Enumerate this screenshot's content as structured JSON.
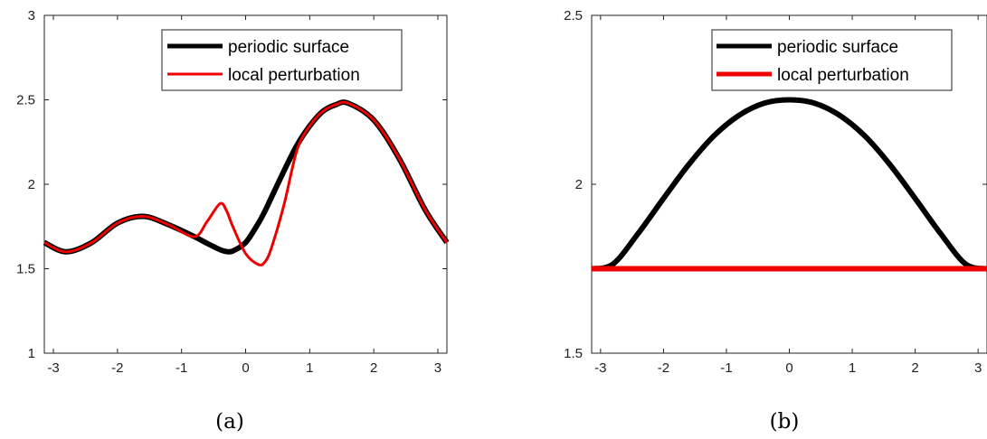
{
  "chart_data": [
    {
      "type": "line",
      "caption": "(a)",
      "xlim": [
        -3.14159,
        3.14159
      ],
      "ylim": [
        1,
        3
      ],
      "xticks": [
        -3,
        -2,
        -1,
        0,
        1,
        2,
        3
      ],
      "xtick_labels": [
        "-3",
        "-2",
        "-1",
        "0",
        "1",
        "2",
        "3"
      ],
      "yticks": [
        1,
        1.5,
        2,
        2.5,
        3
      ],
      "ytick_labels": [
        "1",
        "1.5",
        "2",
        "2.5",
        "3"
      ],
      "grid": false,
      "legend": "top-right",
      "x": [
        -3.1416,
        -2.8,
        -2.4,
        -2.0,
        -1.6,
        -1.2,
        -0.8,
        -0.6,
        -0.4,
        -0.3,
        -0.2,
        0.0,
        0.2,
        0.3,
        0.4,
        0.6,
        0.8,
        1.0,
        1.2,
        1.4,
        1.6,
        2.0,
        2.4,
        2.8,
        3.1416
      ],
      "series": [
        {
          "name": "periodic surface",
          "color": "#000000",
          "values": [
            1.655,
            1.6,
            1.655,
            1.77,
            1.81,
            1.76,
            1.69,
            1.65,
            1.613,
            1.602,
            1.605,
            1.655,
            1.77,
            1.84,
            1.92,
            2.08,
            2.23,
            2.345,
            2.43,
            2.47,
            2.48,
            2.38,
            2.15,
            1.85,
            1.655
          ]
        },
        {
          "name": "local perturbation",
          "color": "#ee0000",
          "values": [
            1.655,
            1.6,
            1.655,
            1.77,
            1.81,
            1.76,
            1.69,
            1.78,
            1.885,
            1.845,
            1.75,
            1.59,
            1.525,
            1.54,
            1.62,
            1.88,
            2.2,
            2.345,
            2.43,
            2.47,
            2.48,
            2.38,
            2.15,
            1.85,
            1.655
          ]
        }
      ]
    },
    {
      "type": "line",
      "caption": "(b)",
      "xlim": [
        -3.14159,
        3.14159
      ],
      "ylim": [
        1.5,
        2.5
      ],
      "xticks": [
        -3,
        -2,
        -1,
        0,
        1,
        2,
        3
      ],
      "xtick_labels": [
        "-3",
        "-2",
        "-1",
        "0",
        "1",
        "2",
        "3"
      ],
      "yticks": [
        1.5,
        2,
        2.5
      ],
      "ytick_labels": [
        "1.5",
        "2",
        "2.5"
      ],
      "grid": false,
      "legend": "top-right",
      "x": [
        -3.1416,
        -2.8,
        -2.4,
        -2.0,
        -1.6,
        -1.2,
        -0.8,
        -0.4,
        0.0,
        0.4,
        0.8,
        1.2,
        1.6,
        2.0,
        2.4,
        2.8,
        3.1416
      ],
      "series": [
        {
          "name": "periodic surface",
          "color": "#000000",
          "values": [
            1.75,
            1.764,
            1.855,
            1.958,
            2.058,
            2.143,
            2.204,
            2.24,
            2.25,
            2.24,
            2.204,
            2.143,
            2.058,
            1.958,
            1.855,
            1.764,
            1.75
          ]
        },
        {
          "name": "local perturbation",
          "color": "#ee0000",
          "values": [
            1.75,
            1.75,
            1.75,
            1.75,
            1.75,
            1.75,
            1.75,
            1.75,
            1.75,
            1.75,
            1.75,
            1.75,
            1.75,
            1.75,
            1.75,
            1.75,
            1.75
          ]
        }
      ]
    }
  ]
}
